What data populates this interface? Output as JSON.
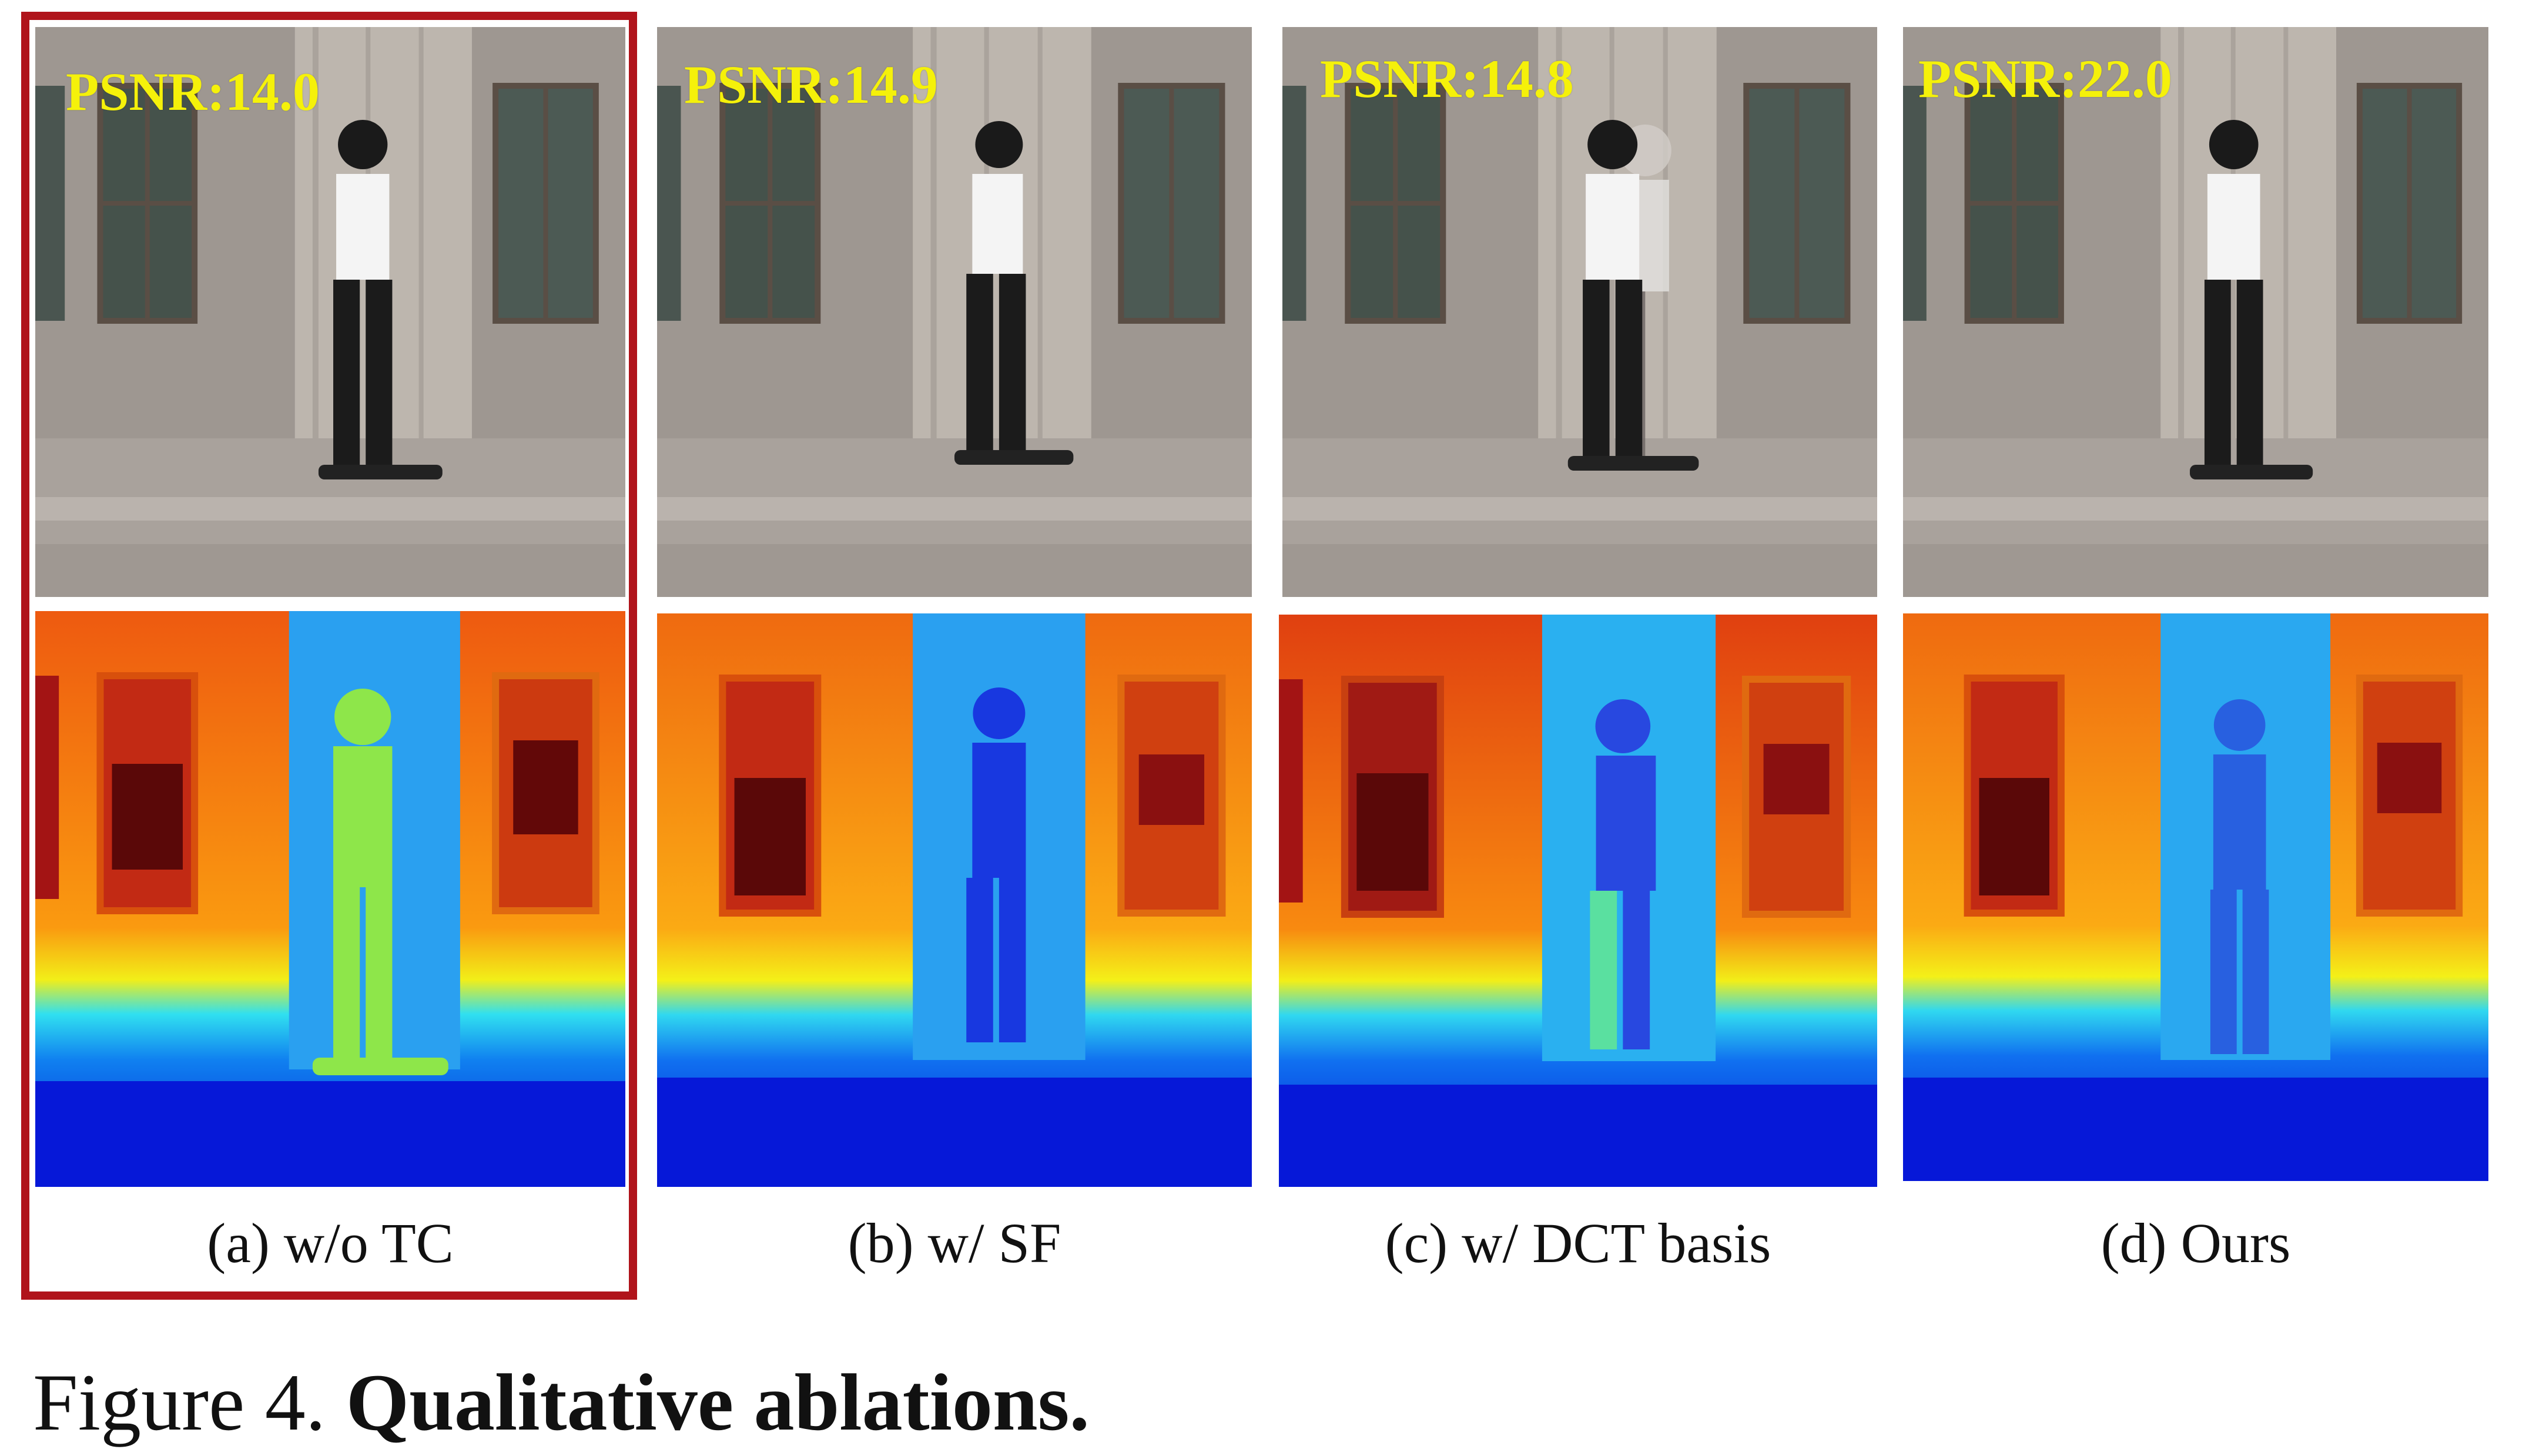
{
  "panels": [
    {
      "psnr": "PSNR:14.0",
      "caption": "(a) w/o TC",
      "highlighted": true
    },
    {
      "psnr": "PSNR:14.9",
      "caption": "(b) w/ SF",
      "highlighted": false
    },
    {
      "psnr": "PSNR:14.8",
      "caption": "(c) w/ DCT basis",
      "highlighted": false
    },
    {
      "psnr": "PSNR:22.0",
      "caption": "(d) Ours",
      "highlighted": false
    }
  ],
  "figure_caption": {
    "prefix": "Figure 4. ",
    "title": "Qualitative ablations."
  },
  "colors": {
    "psnr_text": "#f5f10a",
    "highlight_border": "#b0141b",
    "wall": "#9c9590",
    "pillar": "#bdb6ae",
    "depth_far": "#b01010",
    "depth_near": "#0010d0"
  }
}
